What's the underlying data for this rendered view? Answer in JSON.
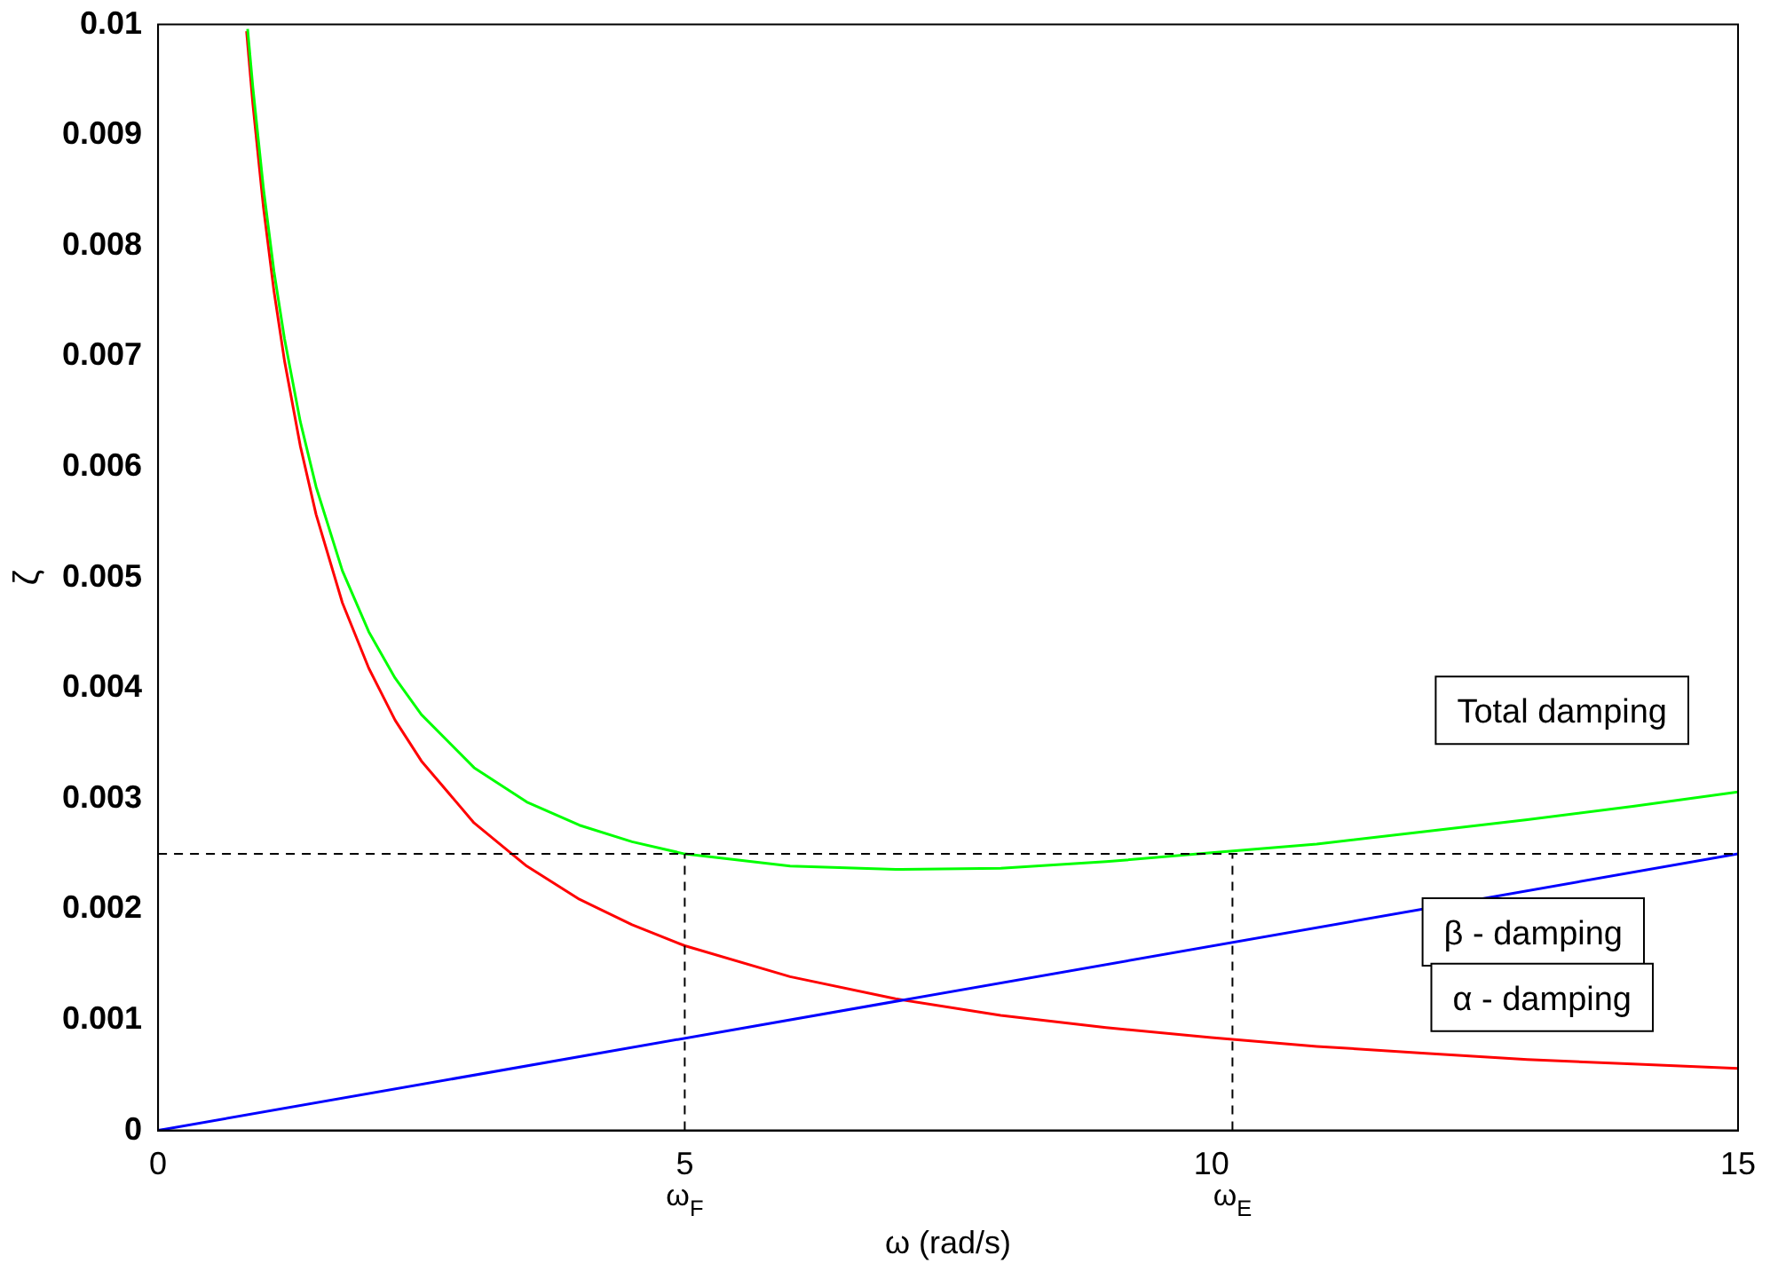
{
  "chart_data": {
    "type": "line",
    "xlabel": "ω (rad/s)",
    "ylabel": "ζ",
    "xlim": [
      0,
      15
    ],
    "xticks": [
      0,
      5,
      10,
      15
    ],
    "ylim": [
      0,
      0.01
    ],
    "yticks": [
      0,
      0.001,
      0.002,
      0.003,
      0.004,
      0.005,
      0.006,
      0.007,
      0.008,
      0.009,
      0.01
    ],
    "grid": false,
    "legend": false,
    "marker": "none",
    "line_style": "solid",
    "series": [
      {
        "name": "Total damping",
        "color": "#00ff00",
        "x": [
          0.85,
          0.9,
          1,
          1.1,
          1.2,
          1.35,
          1.5,
          1.75,
          2,
          2.25,
          2.5,
          3,
          3.5,
          4,
          4.5,
          5,
          6,
          7,
          8,
          9,
          10,
          11,
          12,
          13,
          14,
          15
        ],
        "values": [
          0.00996,
          0.00943,
          0.00852,
          0.00777,
          0.00716,
          0.00641,
          0.00582,
          0.00506,
          0.00451,
          0.00409,
          0.00376,
          0.00328,
          0.00297,
          0.00276,
          0.00261,
          0.0025,
          0.00239,
          0.00236,
          0.00237,
          0.00243,
          0.00251,
          0.00259,
          0.0027,
          0.00281,
          0.00293,
          0.00306
        ]
      },
      {
        "name": "β - damping",
        "color": "#0000ff",
        "x": [
          0,
          15
        ],
        "values": [
          0,
          0.0025
        ]
      },
      {
        "name": "α - damping",
        "color": "#ff0000",
        "x": [
          0.84,
          0.9,
          1,
          1.1,
          1.2,
          1.35,
          1.5,
          1.75,
          2,
          2.25,
          2.5,
          3,
          3.5,
          4,
          4.5,
          5,
          6,
          7,
          8,
          9,
          10,
          11,
          12,
          13,
          14,
          15
        ],
        "values": [
          0.00994,
          0.00928,
          0.00835,
          0.00759,
          0.00696,
          0.00619,
          0.00557,
          0.00477,
          0.00418,
          0.00371,
          0.00334,
          0.00278,
          0.00239,
          0.00209,
          0.00186,
          0.00167,
          0.00139,
          0.00119,
          0.00104,
          0.00093,
          0.00084,
          0.00076,
          0.0007,
          0.00064,
          0.0006,
          0.00056
        ]
      }
    ],
    "ref_lines": [
      {
        "axis": "y",
        "value": 0.0025,
        "color": "#000000",
        "line_style": "dashed"
      },
      {
        "axis": "x",
        "value": 5,
        "label": "ω$_{F}$",
        "color": "#000000",
        "line_style": "dashed"
      },
      {
        "axis": "x",
        "value": 10.2,
        "label": "ω$_{E}$",
        "color": "#000000",
        "line_style": "dashed"
      }
    ]
  }
}
